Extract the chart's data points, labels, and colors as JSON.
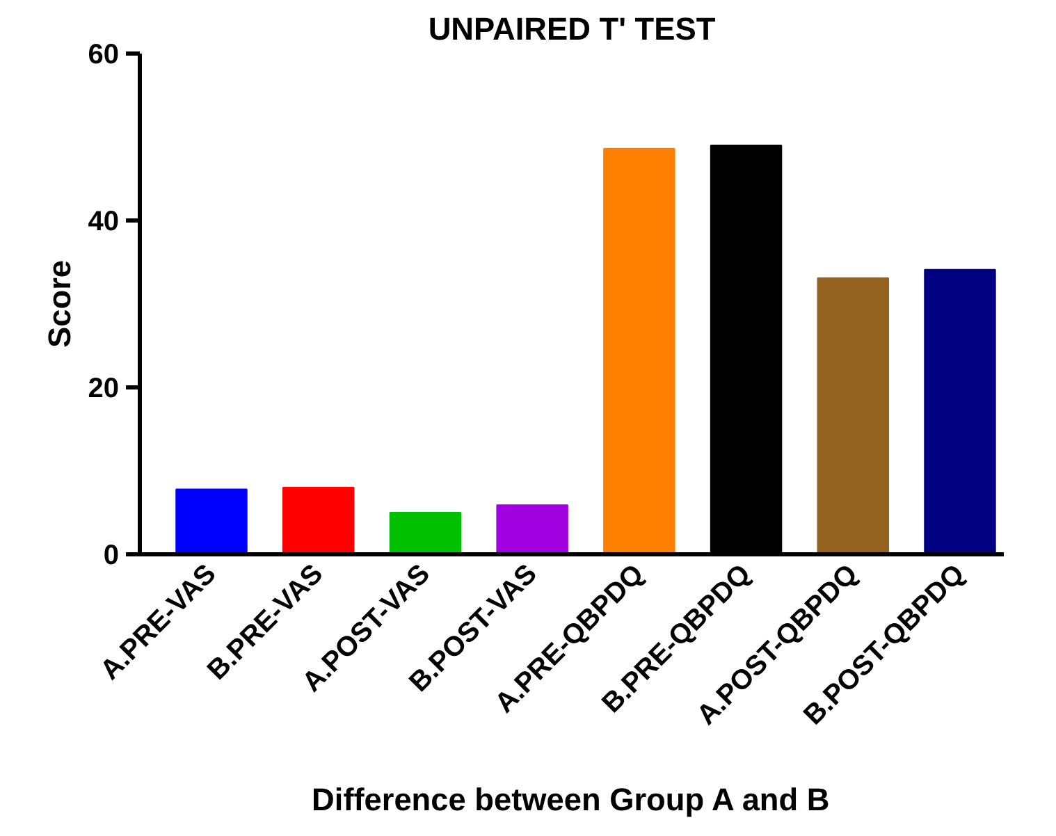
{
  "chart_data": {
    "type": "bar",
    "title": "UNPAIRED T' TEST",
    "xlabel": "Difference between Group A and B",
    "ylabel": "Score",
    "categories": [
      "A.PRE-VAS",
      "B.PRE-VAS",
      "A.POST-VAS",
      "B.POST-VAS",
      "A.PRE-QBPDQ",
      "B.PRE-QBPDQ",
      "A.POST-QBPDQ",
      "B.POST-QBPDQ"
    ],
    "values": [
      7.8,
      8.0,
      5.0,
      5.9,
      48.6,
      49.0,
      33.1,
      34.1
    ],
    "colors": [
      "#0000ff",
      "#ff0000",
      "#00c000",
      "#a000e0",
      "#ff8000",
      "#000000",
      "#94621f",
      "#000080"
    ],
    "ylim": [
      0,
      60
    ],
    "yticks": [
      0,
      20,
      40,
      60
    ],
    "grid": false
  }
}
